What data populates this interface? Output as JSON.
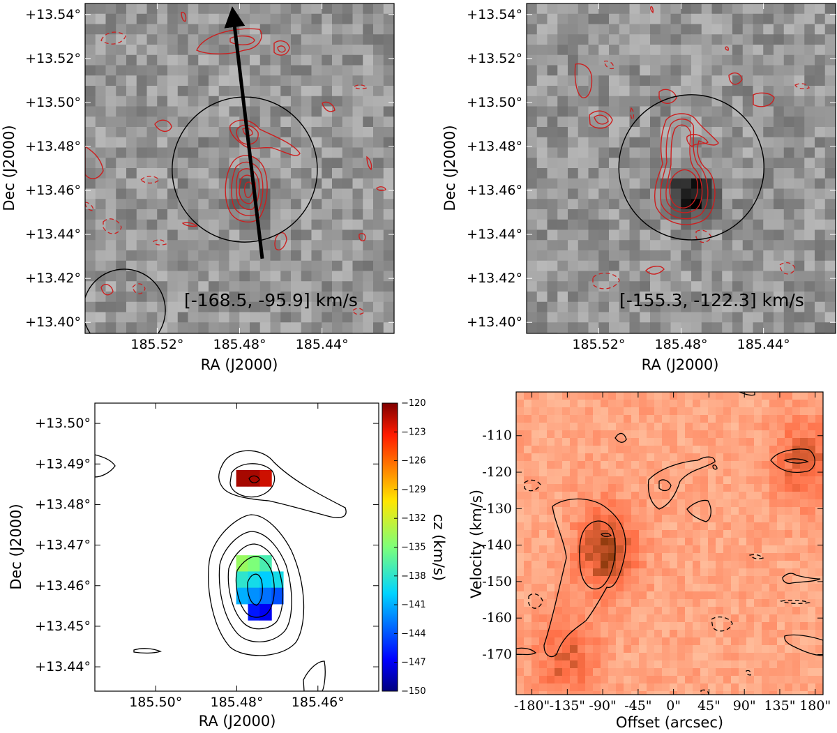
{
  "chart_data": [
    {
      "panel": "top-left",
      "type": "heatmap",
      "xlabel": "RA (J2000)",
      "ylabel": "Dec (J2000)",
      "xlim": [
        185.555,
        185.405
      ],
      "ylim": [
        13.395,
        13.545
      ],
      "xticks": [
        185.52,
        185.48,
        185.44
      ],
      "xtick_labels": [
        "185.52°",
        "185.48°",
        "185.44°"
      ],
      "yticks": [
        13.4,
        13.42,
        13.44,
        13.46,
        13.48,
        13.5,
        13.52,
        13.54
      ],
      "ytick_labels": [
        "+13.40°",
        "+13.42°",
        "+13.44°",
        "+13.46°",
        "+13.48°",
        "+13.50°",
        "+13.52°",
        "+13.54°"
      ],
      "annotation": "[-168.5, -95.9] km/s",
      "colormap": "gray",
      "contour_color": "#cc1f1f",
      "arrow": {
        "from": [
          185.469,
          13.429
        ],
        "to": [
          185.483,
          13.539
        ]
      },
      "circle": {
        "center": [
          185.4775,
          13.4695
        ],
        "radius_deg": 0.033
      },
      "beam": {
        "center": [
          185.536,
          13.4055
        ],
        "radius_deg": 0.0055
      }
    },
    {
      "panel": "top-right",
      "type": "heatmap",
      "xlabel": "RA (J2000)",
      "ylabel": "Dec (J2000)",
      "xlim": [
        185.555,
        185.405
      ],
      "ylim": [
        13.395,
        13.545
      ],
      "xticks": [
        185.52,
        185.48,
        185.44
      ],
      "xtick_labels": [
        "185.52°",
        "185.48°",
        "185.44°"
      ],
      "yticks": [
        13.4,
        13.42,
        13.44,
        13.46,
        13.48,
        13.5,
        13.52,
        13.54
      ],
      "ytick_labels": [
        "+13.40°",
        "+13.42°",
        "+13.44°",
        "+13.46°",
        "+13.48°",
        "+13.50°",
        "+13.52°",
        "+13.54°"
      ],
      "annotation": "[-155.3, -122.3] km/s",
      "colormap": "gray",
      "contour_color": "#cc1f1f",
      "peak": [
        185.475,
        13.458
      ],
      "circle": {
        "center": [
          185.475,
          13.4705
        ],
        "radius_deg": 0.033
      }
    },
    {
      "panel": "bottom-left",
      "type": "heatmap",
      "xlabel": "RA (J2000)",
      "ylabel": "Dec (J2000)",
      "xlim": [
        185.515,
        185.445
      ],
      "ylim": [
        13.434,
        13.505
      ],
      "xticks": [
        185.5,
        185.48,
        185.46
      ],
      "xtick_labels": [
        "185.50°",
        "185.48°",
        "185.46°"
      ],
      "yticks": [
        13.44,
        13.45,
        13.46,
        13.47,
        13.48,
        13.49,
        13.5
      ],
      "ytick_labels": [
        "+13.44°",
        "+13.45°",
        "+13.46°",
        "+13.47°",
        "+13.48°",
        "+13.49°",
        "+13.50°"
      ],
      "colorbar": {
        "label": "cz (km/s)",
        "range": [
          -150,
          -120
        ],
        "ticks": [
          -120,
          -123,
          -126,
          -129,
          -132,
          -135,
          -138,
          -141,
          -144,
          -147,
          -150
        ],
        "tick_labels": [
          "−120",
          "−123",
          "−126",
          "−129",
          "−132",
          "−135",
          "−138",
          "−141",
          "−144",
          "−147",
          "−150"
        ],
        "colormap": "jet"
      },
      "velocity_pixels": [
        {
          "ra": 185.4787,
          "dec": 13.4865,
          "cz": -121
        },
        {
          "ra": 185.4758,
          "dec": 13.4865,
          "cz": -121
        },
        {
          "ra": 185.4729,
          "dec": 13.4865,
          "cz": -122
        },
        {
          "ra": 185.4787,
          "dec": 13.4655,
          "cz": -134
        },
        {
          "ra": 185.4758,
          "dec": 13.4655,
          "cz": -135
        },
        {
          "ra": 185.4729,
          "dec": 13.4655,
          "cz": -137
        },
        {
          "ra": 185.4787,
          "dec": 13.4615,
          "cz": -138
        },
        {
          "ra": 185.4758,
          "dec": 13.4615,
          "cz": -139
        },
        {
          "ra": 185.4729,
          "dec": 13.4615,
          "cz": -140
        },
        {
          "ra": 185.47,
          "dec": 13.4615,
          "cz": -139
        },
        {
          "ra": 185.4787,
          "dec": 13.4575,
          "cz": -141
        },
        {
          "ra": 185.4758,
          "dec": 13.4575,
          "cz": -142
        },
        {
          "ra": 185.4729,
          "dec": 13.4575,
          "cz": -143
        },
        {
          "ra": 185.47,
          "dec": 13.4575,
          "cz": -144
        },
        {
          "ra": 185.4758,
          "dec": 13.4535,
          "cz": -146
        },
        {
          "ra": 185.4729,
          "dec": 13.4535,
          "cz": -147
        }
      ]
    },
    {
      "panel": "bottom-right",
      "type": "heatmap",
      "xlabel": "Offset (arcsec)",
      "ylabel": "Velocity (km/s)",
      "xlim": [
        -200,
        190
      ],
      "ylim": [
        -181,
        -98
      ],
      "xticks": [
        -180,
        -135,
        -90,
        -45,
        0,
        45,
        90,
        135,
        180
      ],
      "xtick_labels": [
        "-180\"",
        "-135\"",
        "-90\"",
        "-45\"",
        "0\"",
        "45\"",
        "90\"",
        "135\"",
        "180\""
      ],
      "yticks": [
        -110,
        -120,
        -130,
        -140,
        -150,
        -160,
        -170
      ],
      "ytick_labels": [
        "-110",
        "-120",
        "-130",
        "-140",
        "-150",
        "-160",
        "-170"
      ],
      "colormap": "orange",
      "emission_peaks": [
        {
          "offset": -90,
          "velocity": -140
        },
        {
          "offset": 160,
          "velocity": -116
        },
        {
          "offset": -140,
          "velocity": -170
        }
      ]
    }
  ]
}
